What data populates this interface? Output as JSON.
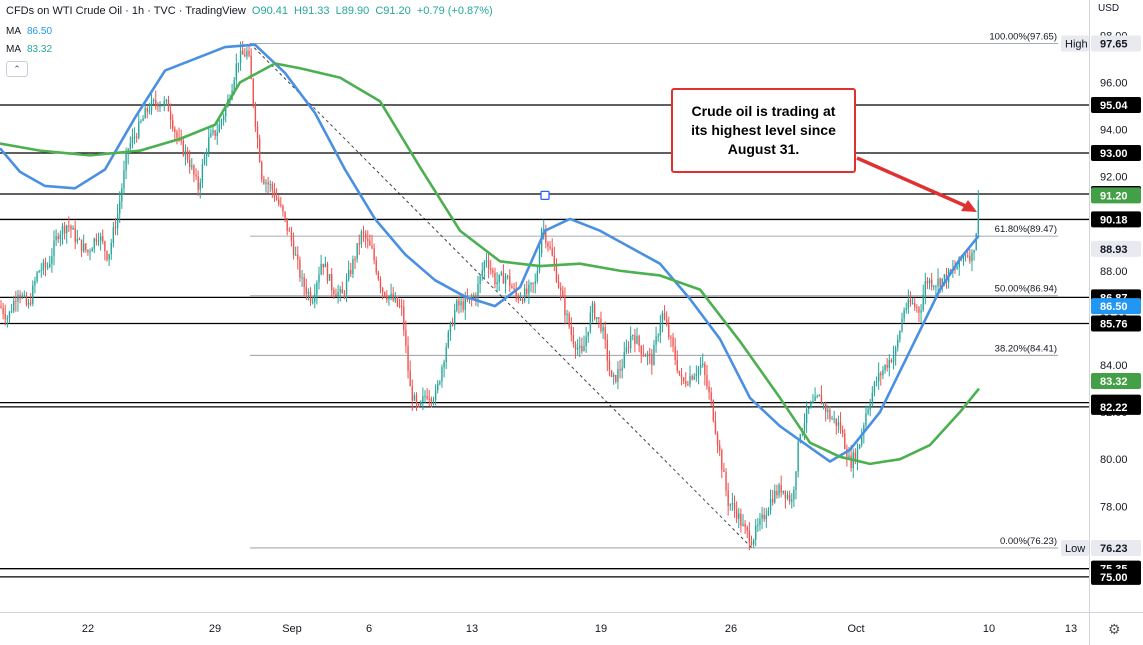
{
  "header": {
    "symbol": "CFDs on WTI Crude Oil · 1h · TVC · TradingView",
    "open": "O90.41",
    "high": "H91.33",
    "low": "L89.90",
    "close": "C91.20",
    "change": "+0.79 (+0.87%)",
    "ma1_label": "MA",
    "ma1_value": "86.50",
    "ma2_label": "MA",
    "ma2_value": "83.32",
    "collapse_icon": "chevron-up-icon",
    "currency": "USD",
    "settings_icon": "gear-icon"
  },
  "annotation": {
    "text": "Crude oil is trading at its highest level since August 31.",
    "color": "#e03030"
  },
  "colors": {
    "ma_fast": "#4a90e2",
    "ma_slow": "#4caf50",
    "bull": "#26a69a",
    "bear": "#ef5350",
    "level": "#000000"
  },
  "chart_data": {
    "type": "candlestick",
    "x_ticks": [
      "22",
      "29",
      "Sep",
      "6",
      "13",
      "19",
      "26",
      "Oct",
      "10",
      "13"
    ],
    "y_ticks": [
      78.0,
      80.0,
      82.0,
      84.0,
      86.0,
      88.0,
      90.0,
      92.0,
      94.0,
      96.0,
      98.0
    ],
    "ylim": [
      74.5,
      99.2
    ],
    "horizontal_levels": [
      95.04,
      93.0,
      91.26,
      90.18,
      86.87,
      85.76,
      82.4,
      82.22,
      75.35,
      75.0
    ],
    "fib_retracement": {
      "levels": [
        {
          "label": "100.00%(97.65)",
          "price": 97.65
        },
        {
          "label": "61.80%(89.47)",
          "price": 89.47
        },
        {
          "label": "50.00%(86.94)",
          "price": 86.94
        },
        {
          "label": "38.20%(84.41)",
          "price": 84.41
        },
        {
          "label": "0.00%(76.23)",
          "price": 76.23
        }
      ]
    },
    "price_labels": [
      {
        "value": "97.65",
        "tag": "High",
        "price": 97.65,
        "style": "pill"
      },
      {
        "value": "95.04",
        "price": 95.04,
        "style": "plain"
      },
      {
        "value": "93.00",
        "price": 93.0,
        "style": "plain"
      },
      {
        "value": "91.26",
        "price": 91.26,
        "style": "plain"
      },
      {
        "value": "91.20",
        "price": 91.2,
        "style": "green"
      },
      {
        "value": "90.18",
        "price": 90.18,
        "style": "plain"
      },
      {
        "value": "88.93",
        "price": 88.93,
        "style": "pill"
      },
      {
        "value": "86.87",
        "price": 86.87,
        "style": "plain"
      },
      {
        "value": "86.50",
        "price": 86.5,
        "style": "blue"
      },
      {
        "value": "85.76",
        "price": 85.76,
        "style": "plain"
      },
      {
        "value": "83.32",
        "price": 83.32,
        "style": "green"
      },
      {
        "value": "82.40",
        "price": 82.4,
        "style": "plain"
      },
      {
        "value": "82.22",
        "price": 82.22,
        "style": "plain"
      },
      {
        "value": "76.23",
        "tag": "Low",
        "price": 76.23,
        "style": "pill"
      },
      {
        "value": "75.35",
        "price": 75.35,
        "style": "plain"
      },
      {
        "value": "75.00",
        "price": 75.0,
        "style": "plain"
      }
    ],
    "price_path": [
      [
        0,
        86.5
      ],
      [
        8,
        86.0
      ],
      [
        18,
        87.2
      ],
      [
        28,
        86.4
      ],
      [
        38,
        88.0
      ],
      [
        48,
        88.2
      ],
      [
        58,
        89.6
      ],
      [
        68,
        90.0
      ],
      [
        78,
        89.2
      ],
      [
        88,
        88.8
      ],
      [
        98,
        89.6
      ],
      [
        108,
        88.6
      ],
      [
        118,
        90.5
      ],
      [
        128,
        93.2
      ],
      [
        138,
        94.0
      ],
      [
        148,
        94.9
      ],
      [
        158,
        95.2
      ],
      [
        168,
        95.0
      ],
      [
        178,
        93.5
      ],
      [
        188,
        92.8
      ],
      [
        198,
        91.5
      ],
      [
        208,
        93.5
      ],
      [
        218,
        94.0
      ],
      [
        228,
        95.2
      ],
      [
        238,
        97.0
      ],
      [
        248,
        97.3
      ],
      [
        255,
        94.5
      ],
      [
        262,
        92.0
      ],
      [
        272,
        91.5
      ],
      [
        282,
        90.5
      ],
      [
        292,
        89.2
      ],
      [
        302,
        87.5
      ],
      [
        312,
        86.8
      ],
      [
        322,
        88.5
      ],
      [
        332,
        87.3
      ],
      [
        342,
        86.9
      ],
      [
        352,
        88.2
      ],
      [
        362,
        89.6
      ],
      [
        372,
        88.8
      ],
      [
        382,
        87.2
      ],
      [
        392,
        86.8
      ],
      [
        402,
        86.3
      ],
      [
        410,
        83.0
      ],
      [
        418,
        82.0
      ],
      [
        426,
        82.8
      ],
      [
        436,
        82.7
      ],
      [
        446,
        84.8
      ],
      [
        456,
        86.5
      ],
      [
        466,
        86.6
      ],
      [
        476,
        87.0
      ],
      [
        486,
        88.6
      ],
      [
        496,
        87.5
      ],
      [
        506,
        87.8
      ],
      [
        516,
        86.9
      ],
      [
        526,
        87.0
      ],
      [
        536,
        87.5
      ],
      [
        542,
        90.0
      ],
      [
        552,
        88.6
      ],
      [
        562,
        86.8
      ],
      [
        572,
        85.2
      ],
      [
        582,
        84.4
      ],
      [
        592,
        86.4
      ],
      [
        602,
        85.6
      ],
      [
        612,
        83.2
      ],
      [
        622,
        84.0
      ],
      [
        632,
        85.4
      ],
      [
        642,
        84.6
      ],
      [
        652,
        84.2
      ],
      [
        662,
        86.2
      ],
      [
        672,
        84.8
      ],
      [
        682,
        83.2
      ],
      [
        692,
        83.6
      ],
      [
        702,
        84.0
      ],
      [
        712,
        82.2
      ],
      [
        720,
        80.2
      ],
      [
        728,
        78.2
      ],
      [
        736,
        77.8
      ],
      [
        744,
        77.0
      ],
      [
        752,
        76.6
      ],
      [
        762,
        77.4
      ],
      [
        772,
        78.4
      ],
      [
        782,
        78.8
      ],
      [
        792,
        78.2
      ],
      [
        800,
        81.2
      ],
      [
        810,
        82.2
      ],
      [
        820,
        82.6
      ],
      [
        830,
        81.8
      ],
      [
        840,
        81.4
      ],
      [
        850,
        79.8
      ],
      [
        858,
        80.4
      ],
      [
        866,
        82.0
      ],
      [
        876,
        83.3
      ],
      [
        886,
        84.0
      ],
      [
        896,
        84.6
      ],
      [
        904,
        86.4
      ],
      [
        912,
        86.6
      ],
      [
        920,
        86.3
      ],
      [
        926,
        87.6
      ],
      [
        936,
        87.5
      ],
      [
        946,
        87.7
      ],
      [
        956,
        88.1
      ],
      [
        966,
        88.8
      ],
      [
        972,
        88.6
      ],
      [
        976,
        89.6
      ],
      [
        979,
        91.2
      ]
    ]
  }
}
